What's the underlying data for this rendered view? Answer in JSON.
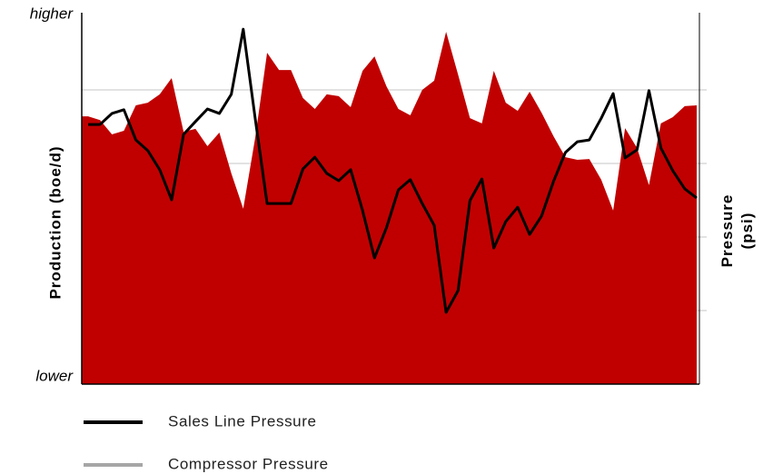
{
  "chart_data": {
    "type": "combo",
    "ylabel": "Production (boe/d)",
    "y2label": "Pressure (psi)",
    "xlim": [
      0,
      51
    ],
    "x": [
      0,
      1,
      2,
      3,
      4,
      5,
      6,
      7,
      8,
      9,
      10,
      11,
      12,
      13,
      14,
      15,
      16,
      17,
      18,
      19,
      20,
      21,
      22,
      23,
      24,
      25,
      26,
      27,
      28,
      29,
      30,
      31,
      32,
      33,
      34,
      35,
      36,
      37,
      38,
      39,
      40,
      41,
      42,
      43,
      44,
      45,
      46,
      47,
      48,
      49,
      50,
      51
    ],
    "ylim": [
      0,
      100
    ],
    "y2lim": [
      0,
      100
    ],
    "yticks": [
      {
        "value": 0,
        "label": "lower"
      },
      {
        "value": 100,
        "label": "higher"
      }
    ],
    "ygrid": [
      20,
      40,
      60,
      80
    ],
    "series": [
      {
        "name": "Production",
        "type": "area",
        "color": "#c00000",
        "legend": false,
        "values": [
          72.8,
          71.8,
          67.9,
          68.9,
          75.8,
          76.5,
          78.8,
          83.2,
          68.6,
          69.4,
          64.7,
          68.4,
          57.3,
          47.7,
          66.9,
          90.1,
          85.4,
          85.4,
          77.8,
          74.8,
          78.8,
          78.3,
          75.3,
          85.2,
          89.1,
          81.0,
          74.8,
          73.1,
          80.0,
          82.5,
          95.8,
          84.2,
          72.3,
          70.9,
          85.2,
          76.5,
          74.3,
          79.5,
          73.8,
          67.4,
          61.7,
          61.0,
          61.2,
          55.6,
          47.2,
          69.6,
          64.2,
          54.1,
          70.9,
          72.6,
          75.6,
          75.8
        ]
      },
      {
        "name": "Sales Line Pressure",
        "type": "line",
        "axis": "y2",
        "color": "#000000",
        "values": [
          70.6,
          70.6,
          73.6,
          74.6,
          66.4,
          63.5,
          58.3,
          50.1,
          67.9,
          71.4,
          74.8,
          73.6,
          78.8,
          96.5,
          72.3,
          49.1,
          49.1,
          49.1,
          58.5,
          61.7,
          57.3,
          55.3,
          58.3,
          47.2,
          34.3,
          42.5,
          52.8,
          55.6,
          49.1,
          43.2,
          19.5,
          25.4,
          49.9,
          55.8,
          37.0,
          44.2,
          48.1,
          40.7,
          45.7,
          55.1,
          63.0,
          65.9,
          66.4,
          72.3,
          79.0,
          61.5,
          63.7,
          79.8,
          64.2,
          58.0,
          53.1,
          50.6
        ]
      },
      {
        "name": "Compressor Pressure",
        "type": "line",
        "axis": "y2",
        "color": "#a6a6a6"
      }
    ]
  }
}
